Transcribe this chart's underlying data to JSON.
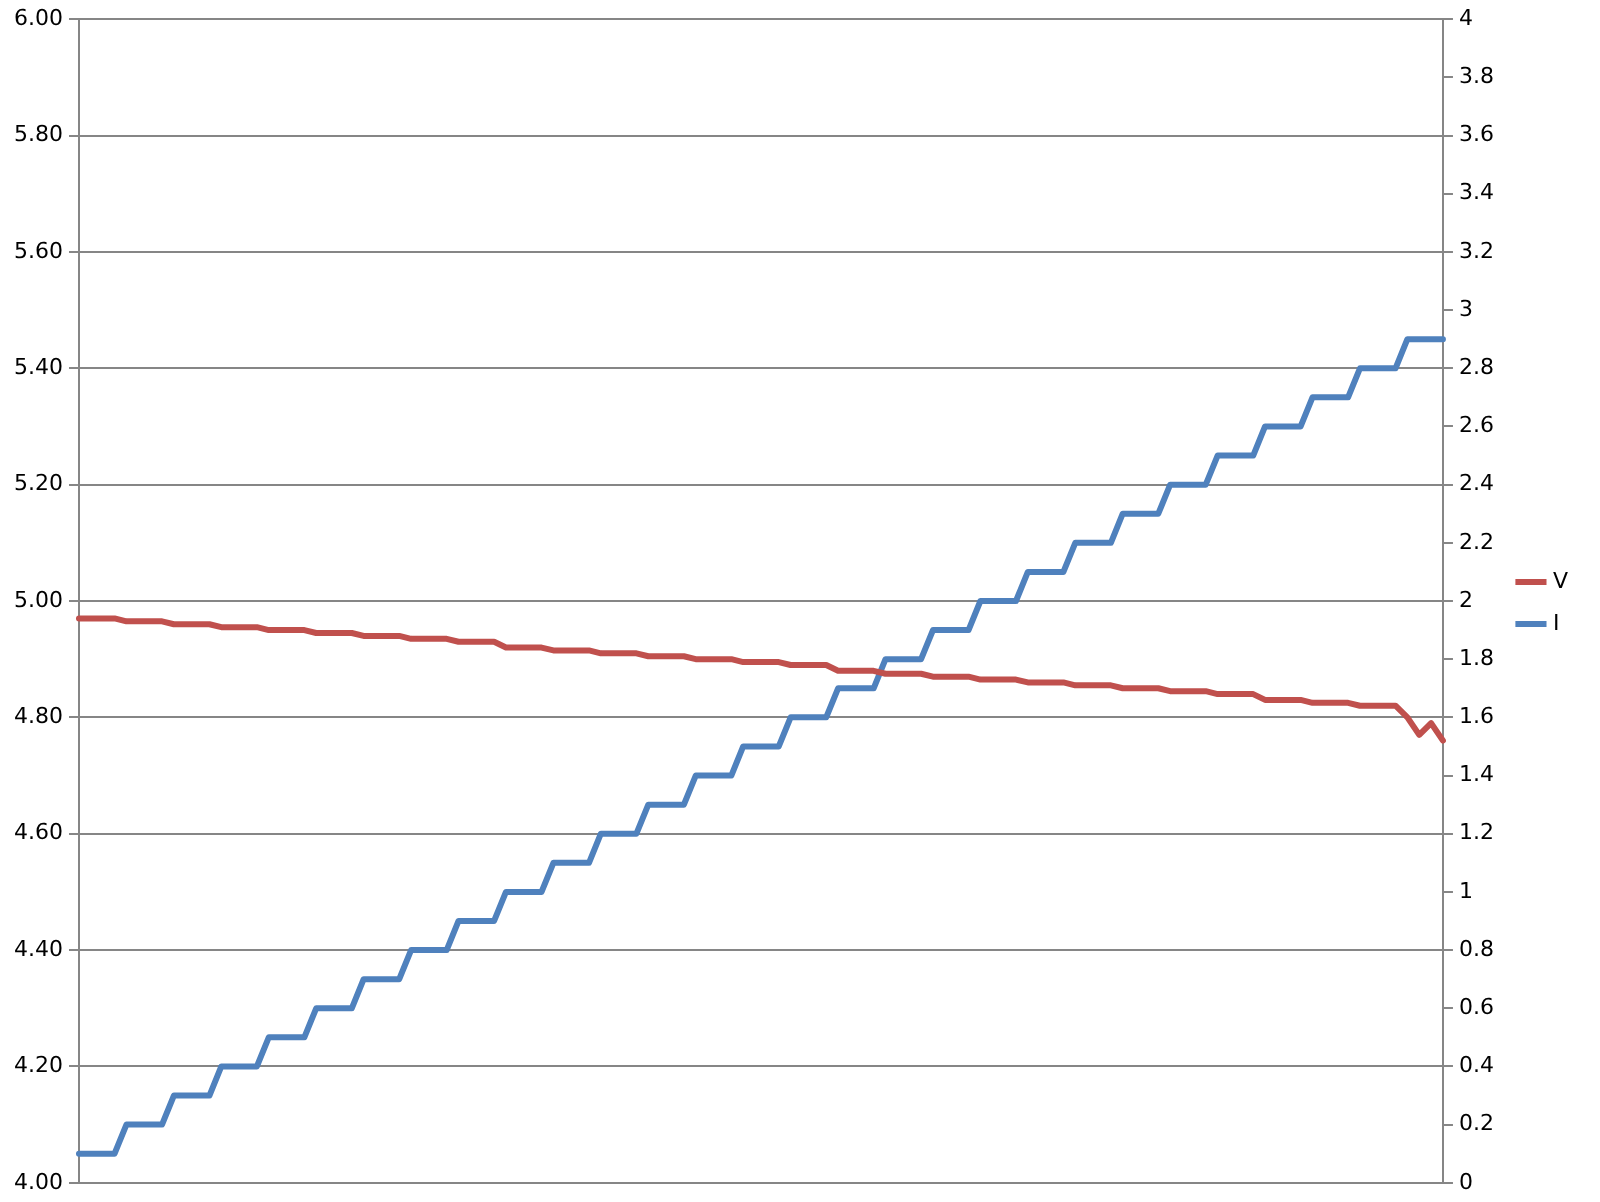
{
  "chart_data": {
    "type": "line",
    "categories": [
      null,
      null,
      null,
      null,
      null,
      null,
      null,
      null,
      null,
      null,
      null,
      null,
      null,
      null,
      null,
      null,
      null,
      null,
      null,
      null,
      null,
      null,
      null,
      null,
      null,
      null,
      null,
      null,
      null,
      null,
      null,
      null,
      null,
      null,
      null,
      null,
      null,
      null,
      null,
      null,
      null,
      null,
      null,
      null,
      null,
      null,
      null,
      null,
      null,
      null,
      null,
      null,
      null,
      null,
      null,
      null,
      null,
      null,
      null,
      null,
      null,
      null,
      null,
      null,
      null,
      null,
      null,
      null,
      null,
      null,
      null,
      null,
      null,
      null,
      null,
      null,
      null,
      null,
      null,
      null,
      null,
      null,
      null,
      null,
      null,
      null,
      null,
      null,
      null,
      null,
      null,
      null,
      null,
      null,
      null,
      null,
      null,
      null,
      null,
      null,
      null,
      null,
      null,
      null,
      null,
      null,
      null,
      null,
      null,
      null,
      null,
      null,
      null,
      null,
      null,
      null
    ],
    "series": [
      {
        "name": "V",
        "color": "#c0504d",
        "values": [
          4.97,
          4.97,
          4.97,
          4.97,
          4.965,
          4.965,
          4.965,
          4.965,
          4.96,
          4.96,
          4.96,
          4.96,
          4.955,
          4.955,
          4.955,
          4.955,
          4.95,
          4.95,
          4.95,
          4.95,
          4.945,
          4.945,
          4.945,
          4.945,
          4.94,
          4.94,
          4.94,
          4.94,
          4.935,
          4.935,
          4.935,
          4.935,
          4.93,
          4.93,
          4.93,
          4.93,
          4.92,
          4.92,
          4.92,
          4.92,
          4.915,
          4.915,
          4.915,
          4.915,
          4.91,
          4.91,
          4.91,
          4.91,
          4.905,
          4.905,
          4.905,
          4.905,
          4.9,
          4.9,
          4.9,
          4.9,
          4.895,
          4.895,
          4.895,
          4.895,
          4.89,
          4.89,
          4.89,
          4.89,
          4.88,
          4.88,
          4.88,
          4.88,
          4.875,
          4.875,
          4.875,
          4.875,
          4.87,
          4.87,
          4.87,
          4.87,
          4.865,
          4.865,
          4.865,
          4.865,
          4.86,
          4.86,
          4.86,
          4.86,
          4.855,
          4.855,
          4.855,
          4.855,
          4.85,
          4.85,
          4.85,
          4.85,
          4.845,
          4.845,
          4.845,
          4.845,
          4.84,
          4.84,
          4.84,
          4.84,
          4.83,
          4.83,
          4.83,
          4.83,
          4.825,
          4.825,
          4.825,
          4.825,
          4.82,
          4.82,
          4.82,
          4.82,
          4.8,
          4.77,
          4.79,
          4.76
        ]
      },
      {
        "name": "I",
        "color": "#4f81bd",
        "axis": "y2",
        "values": [
          0.1,
          0.1,
          0.1,
          0.1,
          0.2,
          0.2,
          0.2,
          0.2,
          0.3,
          0.3,
          0.3,
          0.3,
          0.4,
          0.4,
          0.4,
          0.4,
          0.5,
          0.5,
          0.5,
          0.5,
          0.6,
          0.6,
          0.6,
          0.6,
          0.7,
          0.7,
          0.7,
          0.7,
          0.8,
          0.8,
          0.8,
          0.8,
          0.9,
          0.9,
          0.9,
          0.9,
          1.0,
          1.0,
          1.0,
          1.0,
          1.1,
          1.1,
          1.1,
          1.1,
          1.2,
          1.2,
          1.2,
          1.2,
          1.3,
          1.3,
          1.3,
          1.3,
          1.4,
          1.4,
          1.4,
          1.4,
          1.5,
          1.5,
          1.5,
          1.5,
          1.6,
          1.6,
          1.6,
          1.6,
          1.7,
          1.7,
          1.7,
          1.7,
          1.8,
          1.8,
          1.8,
          1.8,
          1.9,
          1.9,
          1.9,
          1.9,
          2.0,
          2.0,
          2.0,
          2.0,
          2.1,
          2.1,
          2.1,
          2.1,
          2.2,
          2.2,
          2.2,
          2.2,
          2.3,
          2.3,
          2.3,
          2.3,
          2.4,
          2.4,
          2.4,
          2.4,
          2.5,
          2.5,
          2.5,
          2.5,
          2.6,
          2.6,
          2.6,
          2.6,
          2.7,
          2.7,
          2.7,
          2.7,
          2.8,
          2.8,
          2.8,
          2.8,
          2.9,
          2.9,
          2.9,
          2.9
        ]
      }
    ],
    "ylim": [
      4,
      6
    ],
    "yticks": [
      {
        "value": 4,
        "label": "4.00"
      },
      {
        "value": 4.2,
        "label": "4.20"
      },
      {
        "value": 4.4,
        "label": "4.40"
      },
      {
        "value": 4.6,
        "label": "4.60"
      },
      {
        "value": 4.8,
        "label": "4.80"
      },
      {
        "value": 5,
        "label": "5.00"
      },
      {
        "value": 5.2,
        "label": "5.20"
      },
      {
        "value": 5.4,
        "label": "5.40"
      },
      {
        "value": 5.6,
        "label": "5.60"
      },
      {
        "value": 5.8,
        "label": "5.80"
      },
      {
        "value": 6,
        "label": "6.00"
      }
    ],
    "y2lim": [
      0,
      4
    ],
    "y2ticks": [
      0,
      0.2,
      0.4,
      0.6,
      0.8,
      1,
      1.2,
      1.4,
      1.6,
      1.8,
      2,
      2.2,
      2.4,
      2.6,
      2.8,
      3,
      3.2,
      3.4,
      3.6,
      3.8,
      4
    ],
    "grid": "y",
    "legend": "right",
    "marker": "none",
    "line_style": "solid"
  }
}
